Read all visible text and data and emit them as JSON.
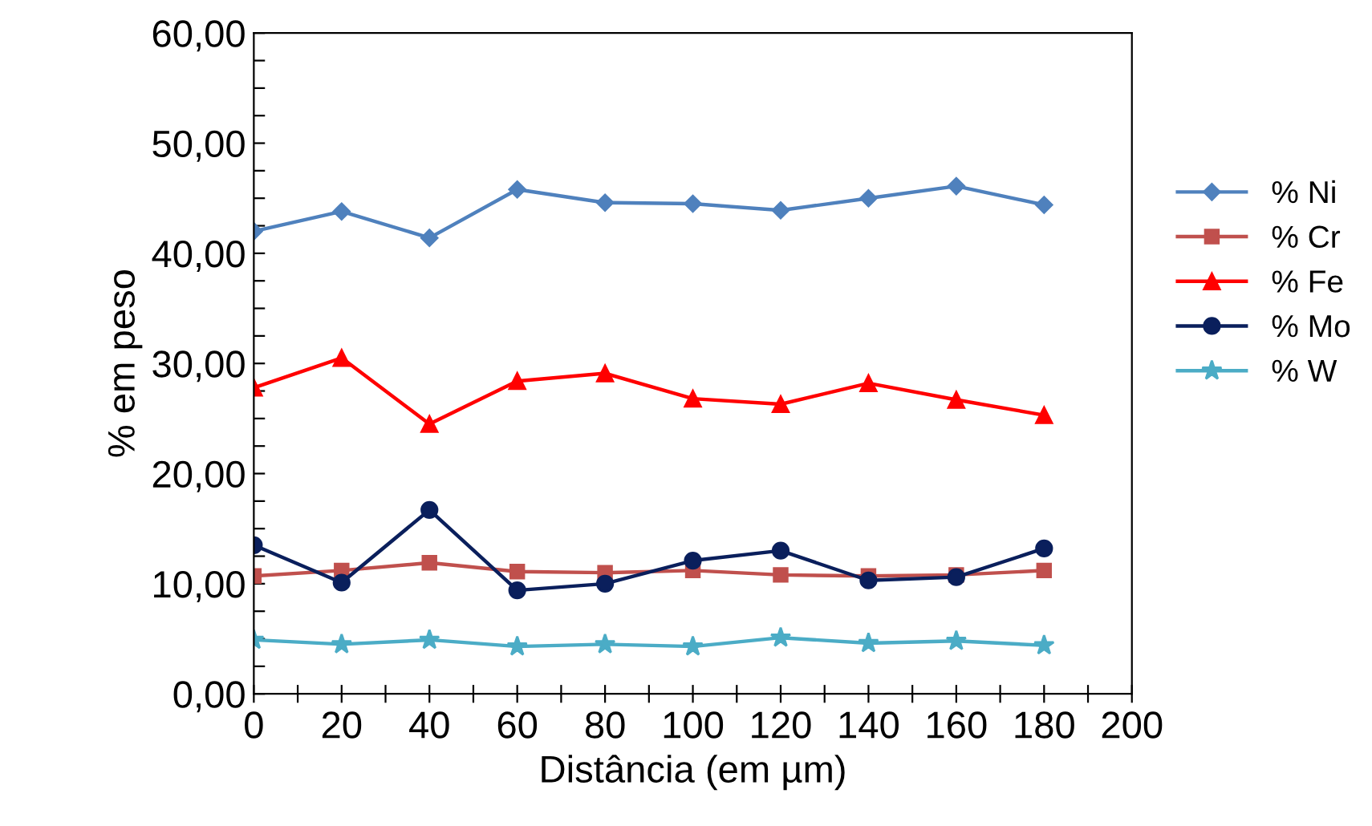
{
  "chart_data": {
    "type": "line",
    "xlabel": "Distância (em µm)",
    "ylabel": "% em peso",
    "x": [
      0,
      20,
      40,
      60,
      80,
      100,
      120,
      140,
      160,
      180
    ],
    "series": [
      {
        "name": "% Ni",
        "color": "#4f81bd",
        "marker": "diamond",
        "values": [
          42.0,
          43.8,
          41.4,
          45.8,
          44.6,
          44.5,
          43.9,
          45.0,
          46.1,
          44.4
        ]
      },
      {
        "name": "% Cr",
        "color": "#c0504d",
        "marker": "square",
        "values": [
          10.7,
          11.2,
          11.9,
          11.1,
          11.0,
          11.2,
          10.8,
          10.7,
          10.8,
          11.2
        ]
      },
      {
        "name": "% Fe",
        "color": "#ff0000",
        "marker": "triangle",
        "values": [
          27.8,
          30.5,
          24.5,
          28.4,
          29.1,
          26.8,
          26.3,
          28.2,
          26.7,
          25.3
        ]
      },
      {
        "name": "% Mo",
        "color": "#0a1f5c",
        "marker": "circle",
        "values": [
          13.5,
          10.1,
          16.7,
          9.4,
          10.0,
          12.1,
          13.0,
          10.3,
          10.6,
          13.2
        ]
      },
      {
        "name": "% W",
        "color": "#4bacc6",
        "marker": "star",
        "values": [
          4.9,
          4.5,
          4.9,
          4.3,
          4.5,
          4.3,
          5.1,
          4.6,
          4.8,
          4.4
        ]
      }
    ],
    "xlim": [
      0,
      200
    ],
    "xticks": [
      0,
      {
        "value": 10,
        "label": null
      },
      20,
      {
        "value": 30,
        "label": null
      },
      40,
      {
        "value": 50,
        "label": null
      },
      60,
      {
        "value": 70,
        "label": null
      },
      80,
      {
        "value": 90,
        "label": null
      },
      100,
      {
        "value": 110,
        "label": null
      },
      120,
      {
        "value": 130,
        "label": null
      },
      140,
      {
        "value": 150,
        "label": null
      },
      160,
      {
        "value": 170,
        "label": null
      },
      180,
      {
        "value": 190,
        "label": null
      },
      200
    ],
    "ylim": [
      0,
      60
    ],
    "yticks": [
      {
        "value": 0,
        "label": "0,00"
      },
      {
        "value": 2.5,
        "label": null
      },
      {
        "value": 5,
        "label": null
      },
      {
        "value": 7.5,
        "label": null
      },
      {
        "value": 10,
        "label": "10,00"
      },
      {
        "value": 12.5,
        "label": null
      },
      {
        "value": 15,
        "label": null
      },
      {
        "value": 17.5,
        "label": null
      },
      {
        "value": 20,
        "label": "20,00"
      },
      {
        "value": 22.5,
        "label": null
      },
      {
        "value": 25,
        "label": null
      },
      {
        "value": 27.5,
        "label": null
      },
      {
        "value": 30,
        "label": "30,00"
      },
      {
        "value": 32.5,
        "label": null
      },
      {
        "value": 35,
        "label": null
      },
      {
        "value": 37.5,
        "label": null
      },
      {
        "value": 40,
        "label": "40,00"
      },
      {
        "value": 42.5,
        "label": null
      },
      {
        "value": 45,
        "label": null
      },
      {
        "value": 47.5,
        "label": null
      },
      {
        "value": 50,
        "label": "50,00"
      },
      {
        "value": 52.5,
        "label": null
      },
      {
        "value": 55,
        "label": null
      },
      {
        "value": 57.5,
        "label": null
      },
      {
        "value": 60,
        "label": "60,00"
      }
    ],
    "grid": false,
    "legend": "right",
    "line_style": "solid"
  }
}
